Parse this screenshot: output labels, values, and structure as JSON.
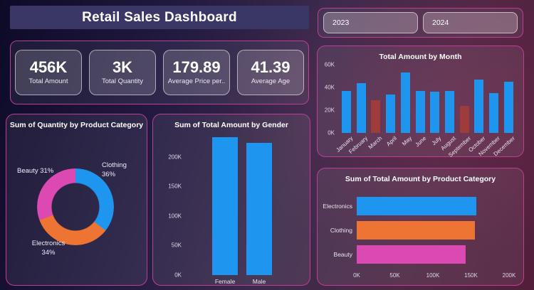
{
  "header": {
    "title": "Retail Sales Dashboard"
  },
  "slicer": {
    "years": [
      "2023",
      "2024"
    ]
  },
  "kpis": [
    {
      "value": "456K",
      "label": "Total Amount"
    },
    {
      "value": "3K",
      "label": "Total Quantity"
    },
    {
      "value": "179.89",
      "label": "Average Price per.."
    },
    {
      "value": "41.39",
      "label": "Average Age"
    }
  ],
  "colors": {
    "bar_blue": "#1e96f0",
    "bar_orange": "#ee7434",
    "bar_pink": "#dd49b2",
    "bar_red": "#9e3b3b",
    "panel_border": "#be3e96",
    "title_bar_bg": "#3a3767"
  },
  "chart_data": [
    {
      "type": "pie",
      "donut": true,
      "title": "Sum of Quantity by Product Category",
      "legend_position": "none",
      "slices": [
        {
          "label": "Clothing",
          "pct": "36%",
          "value": 36,
          "color": "#1e96f0"
        },
        {
          "label": "Electronics",
          "pct": "34%",
          "value": 34,
          "color": "#ee7434"
        },
        {
          "label": "Beauty",
          "pct": "31%",
          "value": 31,
          "color": "#dd49b2"
        }
      ]
    },
    {
      "type": "bar",
      "orientation": "vertical",
      "title": "Sum of Total Amount by Gender",
      "categories": [
        "Female",
        "Male"
      ],
      "values": [
        233000,
        224000
      ],
      "bar_colors": [
        "#1e96f0",
        "#1e96f0"
      ],
      "ylim": [
        0,
        250000
      ],
      "yticks": [
        {
          "label": "0K",
          "value": 0
        },
        {
          "label": "50K",
          "value": 50000
        },
        {
          "label": "100K",
          "value": 100000
        },
        {
          "label": "150K",
          "value": 150000
        },
        {
          "label": "200K",
          "value": 200000
        }
      ],
      "grid": false
    },
    {
      "type": "bar",
      "orientation": "vertical",
      "title": "Total Amount by Month",
      "categories": [
        "January",
        "February",
        "March",
        "April",
        "May",
        "June",
        "July",
        "August",
        "September",
        "October",
        "November",
        "December"
      ],
      "values": [
        37000,
        44000,
        29000,
        34000,
        53000,
        37000,
        36000,
        37000,
        24000,
        47000,
        35000,
        45000
      ],
      "bar_colors": [
        "#1e96f0",
        "#1e96f0",
        "#9e3b3b",
        "#1e96f0",
        "#1e96f0",
        "#1e96f0",
        "#1e96f0",
        "#1e96f0",
        "#9e3b3b",
        "#1e96f0",
        "#1e96f0",
        "#1e96f0"
      ],
      "ylim": [
        0,
        60000
      ],
      "yticks": [
        {
          "label": "0K",
          "value": 0
        },
        {
          "label": "20K",
          "value": 20000
        },
        {
          "label": "40K",
          "value": 40000
        },
        {
          "label": "60K",
          "value": 60000
        }
      ],
      "grid": false
    },
    {
      "type": "bar",
      "orientation": "horizontal",
      "title": "Sum of Total Amount by Product Category",
      "categories": [
        "Electronics",
        "Clothing",
        "Beauty"
      ],
      "values": [
        157000,
        155000,
        143000
      ],
      "bar_colors": [
        "#1e96f0",
        "#ee7434",
        "#dd49b2"
      ],
      "xlim": [
        0,
        200000
      ],
      "xticks": [
        {
          "label": "0K",
          "value": 0
        },
        {
          "label": "50K",
          "value": 50000
        },
        {
          "label": "100K",
          "value": 100000
        },
        {
          "label": "150K",
          "value": 150000
        },
        {
          "label": "200K",
          "value": 200000
        }
      ],
      "grid": false
    }
  ]
}
